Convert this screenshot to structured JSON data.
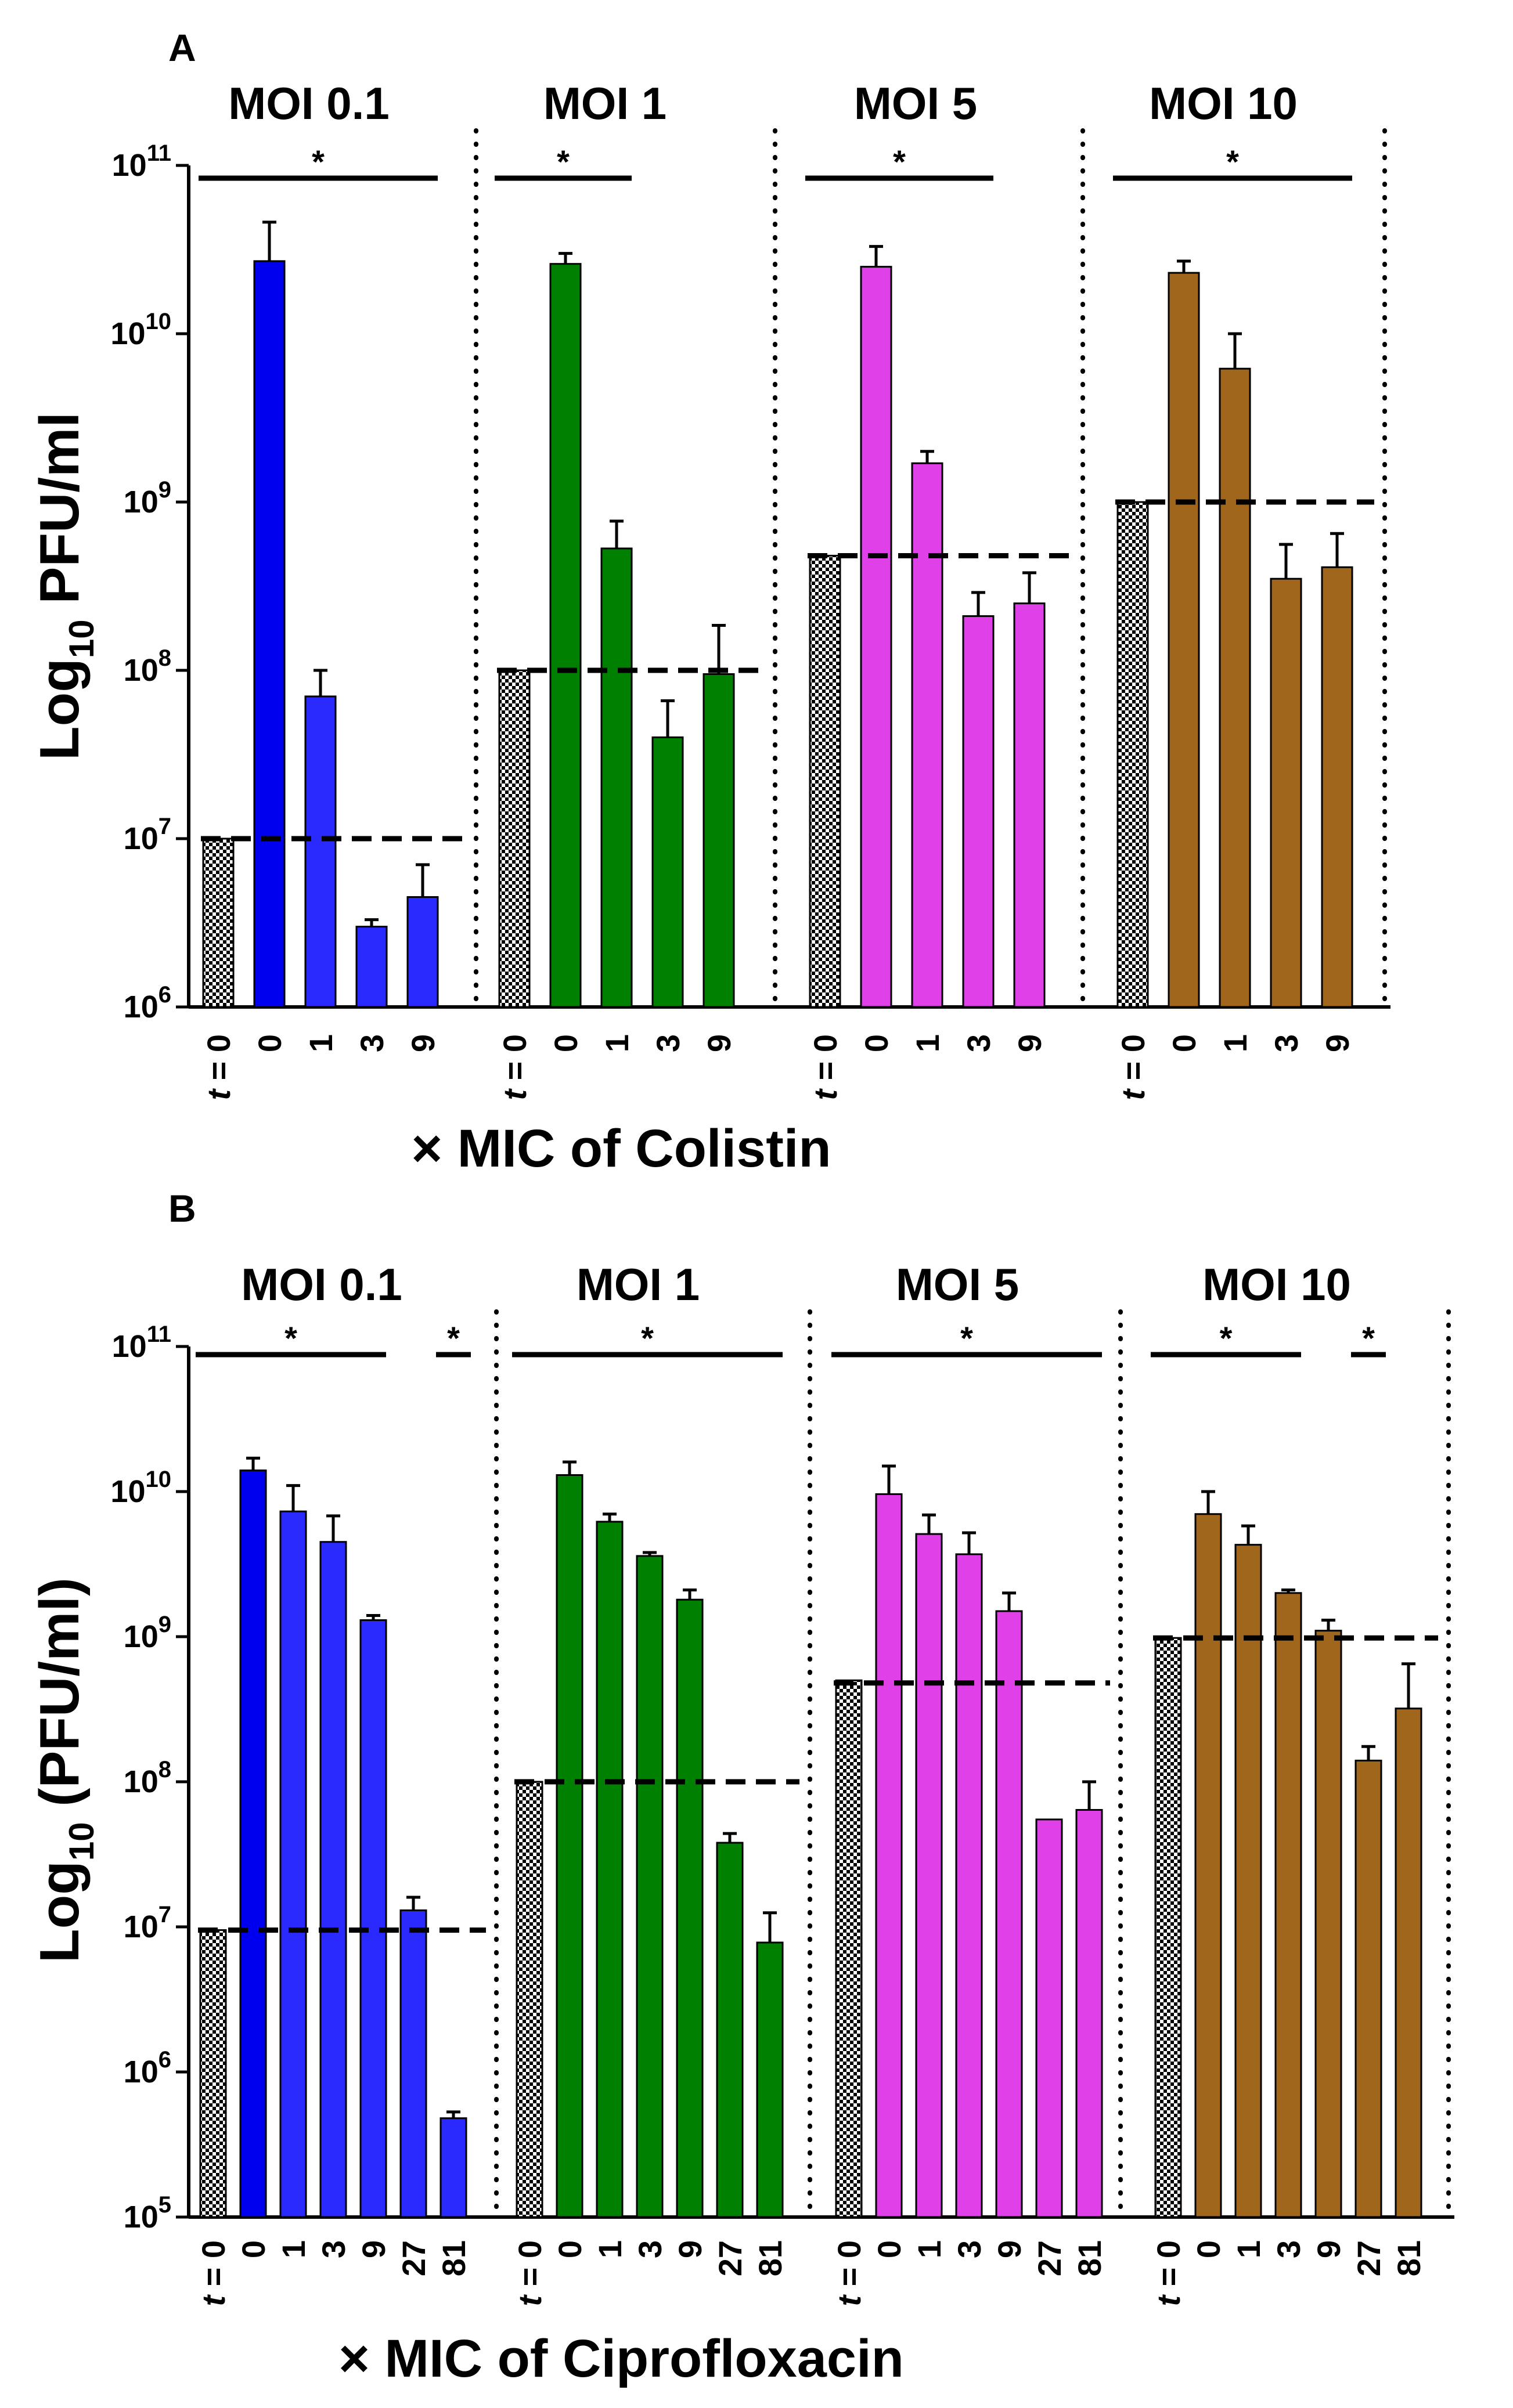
{
  "chart_data": [
    {
      "panel": "A",
      "type": "bar",
      "yscale": "log",
      "ylim": [
        1000000,
        100000000000
      ],
      "ylabel_main": "Log",
      "ylabel_sub": "10",
      "ylabel_rest": " PFU/ml",
      "xlabel": "× MIC of Colistin",
      "yticks": [
        {
          "base": "10",
          "exp": "6",
          "value": 1000000
        },
        {
          "base": "10",
          "exp": "7",
          "value": 10000000
        },
        {
          "base": "10",
          "exp": "8",
          "value": 100000000
        },
        {
          "base": "10",
          "exp": "9",
          "value": 1000000000
        },
        {
          "base": "10",
          "exp": "10",
          "value": 10000000000
        },
        {
          "base": "10",
          "exp": "11",
          "value": 100000000000
        }
      ],
      "t0_prefix": "t",
      "t0_suffix": " = ",
      "groups": [
        {
          "title": "MOI 0.1",
          "color": "#2a2aff",
          "color_first": "#0000ee",
          "t0_label": "0",
          "t0_value": 10000000,
          "dashed_level": 10000000,
          "categories": [
            "0",
            "1",
            "3",
            "9"
          ],
          "values": [
            27000000000,
            70000000,
            3000000,
            4500000
          ],
          "errors": [
            46000000000,
            100000000,
            3300000,
            7000000
          ],
          "significance": [
            {
              "label": "*",
              "from": 0,
              "to": 4
            }
          ]
        },
        {
          "title": "MOI 1",
          "color": "#008000",
          "color_first": "#008000",
          "t0_label": "0",
          "t0_value": 100000000,
          "dashed_level": 100000000,
          "categories": [
            "0",
            "1",
            "3",
            "9"
          ],
          "values": [
            26000000000,
            530000000,
            40000000,
            95000000
          ],
          "errors": [
            30000000000,
            770000000,
            66000000,
            185000000
          ],
          "significance": [
            {
              "label": "*",
              "from": 0,
              "to": 2
            }
          ]
        },
        {
          "title": "MOI 5",
          "color": "#e040e8",
          "color_first": "#e040e8",
          "t0_label": "0",
          "t0_value": 480000000,
          "dashed_level": 480000000,
          "categories": [
            "0",
            "1",
            "3",
            "9"
          ],
          "values": [
            25000000000,
            1700000000,
            210000000,
            250000000
          ],
          "errors": [
            33000000000,
            2000000000,
            290000000,
            380000000
          ],
          "significance": [
            {
              "label": "*",
              "from": 0,
              "to": 3
            }
          ]
        },
        {
          "title": "MOI 10",
          "color": "#a0661c",
          "color_first": "#a0661c",
          "t0_label": "0",
          "t0_value": 1000000000,
          "dashed_level": 1000000000,
          "categories": [
            "0",
            "1",
            "3",
            "9"
          ],
          "values": [
            23000000000,
            6200000000,
            350000000,
            410000000
          ],
          "errors": [
            27000000000,
            10000000000,
            560000000,
            650000000
          ],
          "significance": [
            {
              "label": "*",
              "from": 0,
              "to": 4
            }
          ]
        }
      ]
    },
    {
      "panel": "B",
      "type": "bar",
      "yscale": "log",
      "ylim": [
        100000,
        100000000000
      ],
      "ylabel_main": "Log",
      "ylabel_sub": "10",
      "ylabel_rest": " (PFU/ml)",
      "xlabel": "× MIC of Ciprofloxacin",
      "yticks": [
        {
          "base": "10",
          "exp": "5",
          "value": 100000
        },
        {
          "base": "10",
          "exp": "6",
          "value": 1000000
        },
        {
          "base": "10",
          "exp": "7",
          "value": 10000000
        },
        {
          "base": "10",
          "exp": "8",
          "value": 100000000
        },
        {
          "base": "10",
          "exp": "9",
          "value": 1000000000
        },
        {
          "base": "10",
          "exp": "10",
          "value": 10000000000
        },
        {
          "base": "10",
          "exp": "11",
          "value": 100000000000
        }
      ],
      "t0_prefix": "t",
      "t0_suffix": " = ",
      "groups": [
        {
          "title": "MOI 0.1",
          "color": "#2a2aff",
          "color_first": "#0000ee",
          "t0_label": "0",
          "t0_value": 9500000,
          "dashed_level": 9500000,
          "categories": [
            "0",
            "1",
            "3",
            "9",
            "27",
            "81"
          ],
          "values": [
            14000000000,
            7300000000,
            4500000000,
            1300000000,
            13000000,
            480000
          ],
          "errors": [
            17000000000,
            11000000000,
            6800000000,
            1400000000,
            16000000,
            530000
          ],
          "significance": [
            {
              "label": "*",
              "from": 0,
              "to": 4
            },
            {
              "label": "*",
              "from": 6,
              "to": 6
            }
          ]
        },
        {
          "title": "MOI 1",
          "color": "#008000",
          "color_first": "#008000",
          "t0_label": "0",
          "t0_value": 100000000,
          "dashed_level": 100000000,
          "categories": [
            "0",
            "1",
            "3",
            "9",
            "27",
            "81"
          ],
          "values": [
            13000000000,
            6200000000,
            3600000000,
            1800000000,
            38000000,
            7800000
          ],
          "errors": [
            16000000000,
            7000000000,
            3800000000,
            2100000000,
            44000000,
            12500000
          ],
          "significance": [
            {
              "label": "*",
              "from": 0,
              "to": 6
            }
          ]
        },
        {
          "title": "MOI 5",
          "color": "#e040e8",
          "color_first": "#e040e8",
          "t0_label": "0",
          "t0_value": 500000000,
          "dashed_level": 480000000,
          "categories": [
            "0",
            "1",
            "3",
            "9",
            "27",
            "81"
          ],
          "values": [
            9600000000,
            5100000000,
            3700000000,
            1500000000,
            55000000,
            64000000
          ],
          "errors": [
            15000000000,
            6900000000,
            5200000000,
            2000000000,
            55000000,
            100000000
          ],
          "significance": [
            {
              "label": "*",
              "from": 0,
              "to": 6
            }
          ]
        },
        {
          "title": "MOI 10",
          "color": "#a0661c",
          "color_first": "#a0661c",
          "t0_label": "0",
          "t0_value": 980000000,
          "dashed_level": 980000000,
          "categories": [
            "0",
            "1",
            "3",
            "9",
            "27",
            "81"
          ],
          "values": [
            7000000000,
            4300000000,
            2000000000,
            1100000000,
            140000000,
            320000000
          ],
          "errors": [
            10000000000,
            5800000000,
            2100000000,
            1300000000,
            175000000,
            650000000
          ],
          "significance": [
            {
              "label": "*",
              "from": 0,
              "to": 3
            },
            {
              "label": "*",
              "from": 5,
              "to": 5
            }
          ]
        }
      ]
    }
  ]
}
